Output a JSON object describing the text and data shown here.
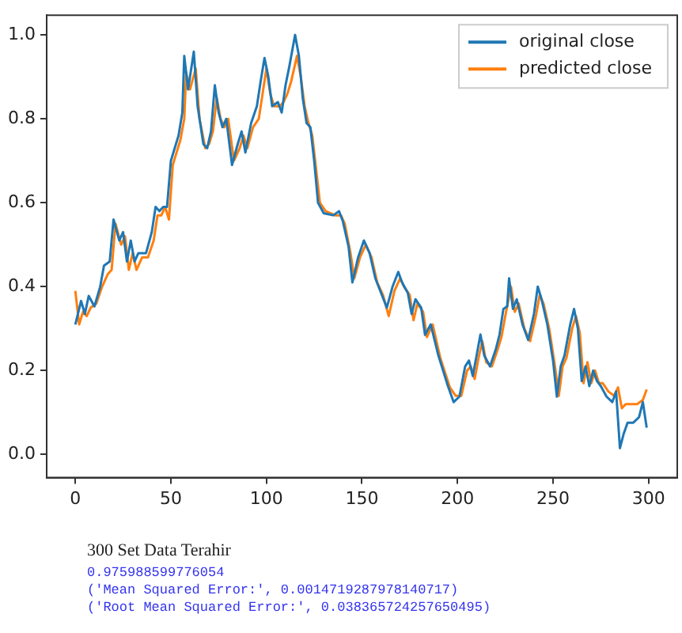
{
  "chart_data": {
    "type": "line",
    "xlim": [
      -15,
      315
    ],
    "xticks": [
      0,
      50,
      100,
      150,
      200,
      250,
      300
    ],
    "ylim": [
      -0.055,
      1.047
    ],
    "yticks": [
      {
        "value": 0,
        "label": "0.0"
      },
      0.2,
      0.4,
      0.6,
      0.8,
      {
        "value": 1,
        "label": "1.0"
      }
    ],
    "grid": false,
    "legend": "top right",
    "marker": "none",
    "line_style": "solid",
    "series": [
      {
        "name": "original close",
        "color": "#1f77b4",
        "x": [
          0,
          3,
          5,
          7,
          10,
          13,
          15,
          18,
          20,
          23,
          25,
          27,
          29,
          31,
          33,
          37,
          40,
          42,
          44,
          46,
          48,
          50,
          52,
          54,
          56,
          57,
          59,
          62,
          64,
          67,
          69,
          71,
          73,
          75,
          77,
          79,
          82,
          85,
          87,
          89,
          92,
          95,
          97,
          99,
          101,
          103,
          106,
          108,
          110,
          112,
          115,
          117,
          119,
          121,
          123,
          125,
          127,
          130,
          135,
          138,
          140,
          143,
          145,
          148,
          151,
          154,
          157,
          160,
          163,
          166,
          169,
          171,
          174,
          176,
          178,
          181,
          183,
          186,
          190,
          195,
          198,
          201,
          204,
          206,
          208,
          210,
          212,
          214,
          217,
          220,
          222,
          224,
          226,
          227,
          229,
          231,
          234,
          237,
          240,
          242,
          244,
          247,
          250,
          252,
          254,
          256,
          259,
          261,
          263,
          265,
          267,
          269,
          271,
          273,
          275,
          278,
          281,
          283,
          285,
          287,
          289,
          292,
          295,
          297,
          299
        ],
        "values": [
          0.31,
          0.366,
          0.335,
          0.378,
          0.353,
          0.4,
          0.45,
          0.46,
          0.56,
          0.51,
          0.53,
          0.46,
          0.51,
          0.46,
          0.48,
          0.48,
          0.53,
          0.59,
          0.58,
          0.59,
          0.59,
          0.7,
          0.73,
          0.76,
          0.815,
          0.95,
          0.87,
          0.96,
          0.83,
          0.74,
          0.73,
          0.77,
          0.88,
          0.815,
          0.78,
          0.8,
          0.69,
          0.74,
          0.77,
          0.72,
          0.79,
          0.83,
          0.89,
          0.945,
          0.9,
          0.83,
          0.84,
          0.815,
          0.88,
          0.925,
          1.0,
          0.95,
          0.85,
          0.79,
          0.78,
          0.7,
          0.6,
          0.575,
          0.57,
          0.58,
          0.556,
          0.495,
          0.41,
          0.47,
          0.51,
          0.48,
          0.42,
          0.385,
          0.35,
          0.4,
          0.435,
          0.41,
          0.385,
          0.335,
          0.37,
          0.35,
          0.285,
          0.31,
          0.236,
          0.163,
          0.125,
          0.138,
          0.21,
          0.224,
          0.187,
          0.236,
          0.286,
          0.236,
          0.21,
          0.25,
          0.286,
          0.347,
          0.353,
          0.42,
          0.347,
          0.37,
          0.31,
          0.273,
          0.335,
          0.4,
          0.37,
          0.31,
          0.224,
          0.138,
          0.21,
          0.236,
          0.31,
          0.347,
          0.3,
          0.175,
          0.21,
          0.163,
          0.2,
          0.175,
          0.163,
          0.138,
          0.125,
          0.15,
          0.015,
          0.05,
          0.076,
          0.076,
          0.089,
          0.125,
          0.064
        ]
      },
      {
        "name": "predicted close",
        "color": "#ff7f0e",
        "x": [
          0,
          2,
          4,
          6,
          8,
          11,
          14,
          17,
          19,
          21,
          24,
          26,
          28,
          30,
          32,
          35,
          38,
          41,
          43,
          45,
          47,
          49,
          51,
          53,
          55,
          57,
          58,
          60,
          63,
          65,
          68,
          70,
          72,
          74,
          76,
          78,
          80,
          83,
          86,
          88,
          90,
          93,
          96,
          98,
          100,
          102,
          104,
          107,
          109,
          111,
          113,
          116,
          118,
          120,
          122,
          124,
          126,
          128,
          131,
          136,
          139,
          141,
          144,
          146,
          149,
          152,
          155,
          158,
          161,
          164,
          167,
          170,
          172,
          175,
          177,
          179,
          182,
          184,
          187,
          191,
          196,
          199,
          202,
          205,
          207,
          209,
          211,
          213,
          215,
          218,
          221,
          223,
          225,
          228,
          230,
          232,
          235,
          238,
          241,
          243,
          245,
          248,
          251,
          253,
          255,
          257,
          260,
          262,
          264,
          266,
          268,
          270,
          272,
          274,
          276,
          279,
          282,
          284,
          286,
          288,
          291,
          294,
          297,
          299
        ],
        "values": [
          0.39,
          0.31,
          0.34,
          0.33,
          0.35,
          0.36,
          0.4,
          0.43,
          0.44,
          0.55,
          0.5,
          0.52,
          0.44,
          0.48,
          0.44,
          0.47,
          0.47,
          0.51,
          0.57,
          0.57,
          0.59,
          0.56,
          0.69,
          0.72,
          0.75,
          0.8,
          0.91,
          0.87,
          0.92,
          0.8,
          0.73,
          0.74,
          0.77,
          0.85,
          0.8,
          0.78,
          0.8,
          0.7,
          0.73,
          0.76,
          0.73,
          0.78,
          0.8,
          0.86,
          0.92,
          0.86,
          0.83,
          0.83,
          0.84,
          0.86,
          0.89,
          0.95,
          0.9,
          0.83,
          0.79,
          0.76,
          0.68,
          0.6,
          0.58,
          0.57,
          0.57,
          0.55,
          0.48,
          0.42,
          0.47,
          0.5,
          0.47,
          0.41,
          0.38,
          0.33,
          0.39,
          0.42,
          0.4,
          0.38,
          0.32,
          0.36,
          0.34,
          0.28,
          0.31,
          0.23,
          0.16,
          0.14,
          0.14,
          0.2,
          0.21,
          0.18,
          0.23,
          0.27,
          0.22,
          0.21,
          0.25,
          0.28,
          0.33,
          0.4,
          0.34,
          0.36,
          0.3,
          0.27,
          0.33,
          0.38,
          0.36,
          0.3,
          0.21,
          0.14,
          0.21,
          0.23,
          0.3,
          0.33,
          0.29,
          0.17,
          0.22,
          0.17,
          0.2,
          0.17,
          0.17,
          0.15,
          0.14,
          0.16,
          0.11,
          0.12,
          0.12,
          0.12,
          0.13,
          0.155
        ]
      }
    ],
    "annotations": [
      "300 Set Data Terahir",
      "0.975988599776054",
      "('Mean Squared Error:', 0.0014719287978140717)",
      "('Root Mean Squared Error:', 0.038365724257650495)"
    ]
  }
}
